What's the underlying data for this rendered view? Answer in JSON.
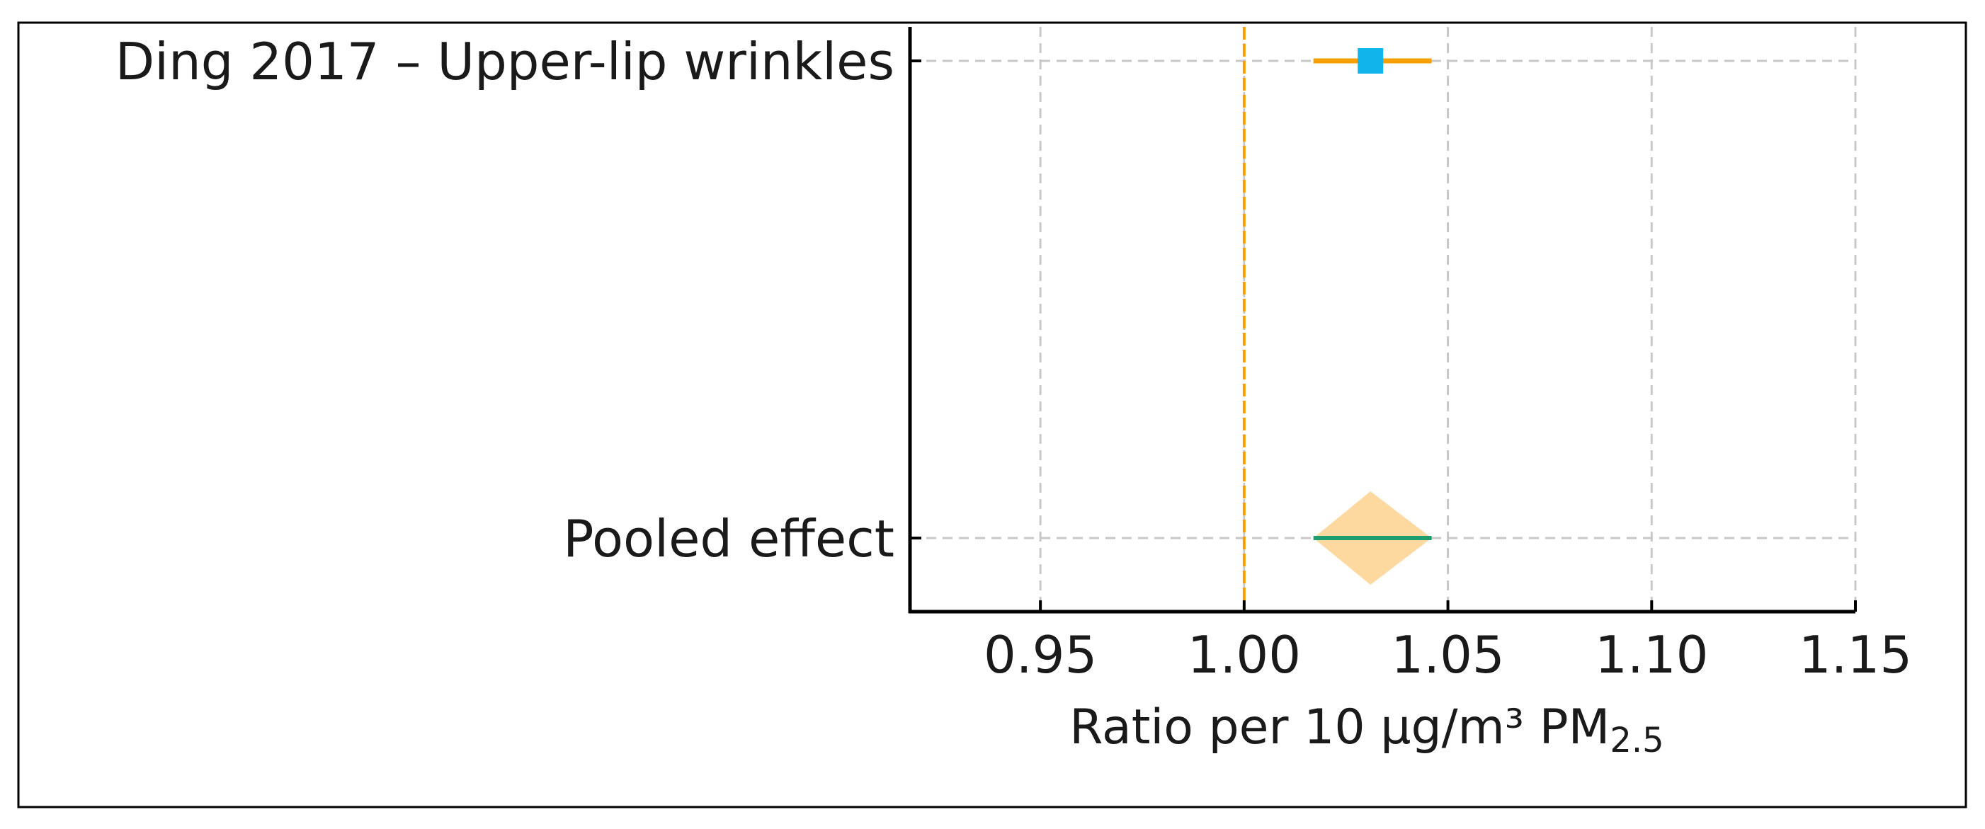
{
  "chart_data": {
    "type": "forest",
    "xlabel": "Ratio per 10 μg/m³ PM",
    "xlabel_subscript": "2.5",
    "xlim": [
      0.918,
      1.15
    ],
    "xticks": [
      {
        "value": 0.95,
        "label": "0.95"
      },
      {
        "value": 1.0,
        "label": "1.00"
      },
      {
        "value": 1.05,
        "label": "1.05"
      },
      {
        "value": 1.1,
        "label": "1.10"
      },
      {
        "value": 1.15,
        "label": "1.15"
      }
    ],
    "grid": true,
    "reference_line": {
      "value": 1.0,
      "style": "dashed",
      "color": "#F5A000"
    },
    "studies": [
      {
        "label": "Ding 2017 – Upper-lip wrinkles",
        "estimate": 1.031,
        "ci_low": 1.017,
        "ci_high": 1.046
      }
    ],
    "pooled": {
      "label": "Pooled effect",
      "estimate": 1.031,
      "ci_low": 1.017,
      "ci_high": 1.046
    },
    "colors": {
      "study_marker": "#12B4EC",
      "study_ci": "#F5A000",
      "pooled_diamond": "#FDD9A0",
      "pooled_ci": "#1E9E6E",
      "grid": "#c8c8c8",
      "axis": "#000000"
    }
  }
}
